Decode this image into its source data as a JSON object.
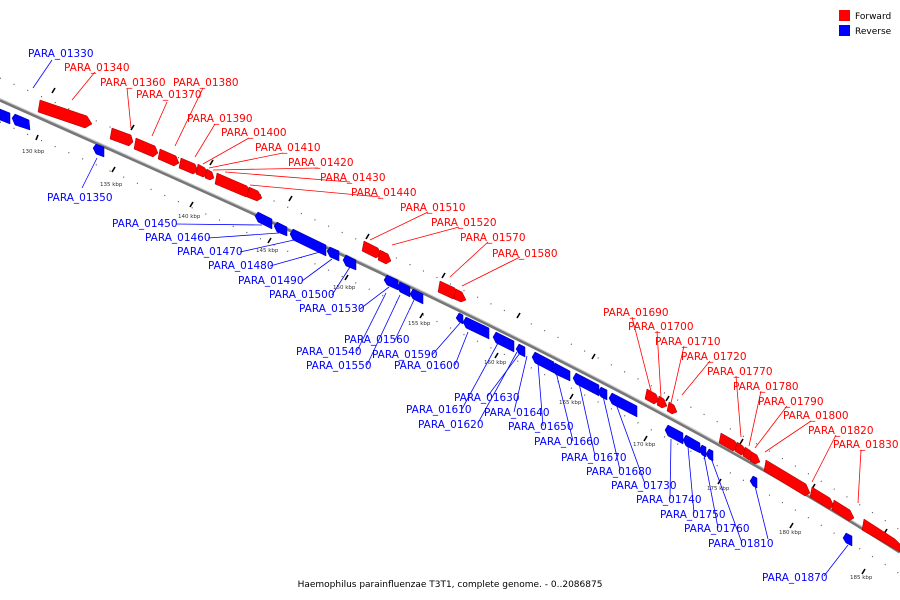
{
  "title": "Haemophilus parainfluenzae T3T1, complete genome. - 0..2086875",
  "legend": [
    {
      "label": "Forward",
      "color": "#ff0000"
    },
    {
      "label": "Reverse",
      "color": "#0000ff"
    }
  ],
  "colors": {
    "forward": "#ff0000",
    "reverse": "#0000ff",
    "backbone": "#777777"
  },
  "ticks": [
    "130 kbp",
    "135 kbp",
    "140 kbp",
    "145 kbp",
    "150 kbp",
    "155 kbp",
    "160 kbp",
    "165 kbp",
    "170 kbp",
    "175 kbp",
    "180 kbp",
    "185 kbp"
  ],
  "genes": [
    {
      "id": "PARA_01330",
      "strand": "reverse"
    },
    {
      "id": "PARA_01340",
      "strand": "forward"
    },
    {
      "id": "PARA_01350",
      "strand": "reverse"
    },
    {
      "id": "PARA_01360",
      "strand": "forward"
    },
    {
      "id": "PARA_01370",
      "strand": "forward"
    },
    {
      "id": "PARA_01380",
      "strand": "forward"
    },
    {
      "id": "PARA_01390",
      "strand": "forward"
    },
    {
      "id": "PARA_01400",
      "strand": "forward"
    },
    {
      "id": "PARA_01410",
      "strand": "forward"
    },
    {
      "id": "PARA_01420",
      "strand": "forward"
    },
    {
      "id": "PARA_01430",
      "strand": "forward"
    },
    {
      "id": "PARA_01440",
      "strand": "forward"
    },
    {
      "id": "PARA_01450",
      "strand": "reverse"
    },
    {
      "id": "PARA_01460",
      "strand": "reverse"
    },
    {
      "id": "PARA_01470",
      "strand": "reverse"
    },
    {
      "id": "PARA_01480",
      "strand": "reverse"
    },
    {
      "id": "PARA_01490",
      "strand": "reverse"
    },
    {
      "id": "PARA_01500",
      "strand": "reverse"
    },
    {
      "id": "PARA_01510",
      "strand": "forward"
    },
    {
      "id": "PARA_01520",
      "strand": "forward"
    },
    {
      "id": "PARA_01530",
      "strand": "reverse"
    },
    {
      "id": "PARA_01540",
      "strand": "reverse"
    },
    {
      "id": "PARA_01550",
      "strand": "reverse"
    },
    {
      "id": "PARA_01560",
      "strand": "reverse"
    },
    {
      "id": "PARA_01570",
      "strand": "forward"
    },
    {
      "id": "PARA_01580",
      "strand": "forward"
    },
    {
      "id": "PARA_01590",
      "strand": "reverse"
    },
    {
      "id": "PARA_01600",
      "strand": "reverse"
    },
    {
      "id": "PARA_01610",
      "strand": "reverse"
    },
    {
      "id": "PARA_01620",
      "strand": "reverse"
    },
    {
      "id": "PARA_01630",
      "strand": "reverse"
    },
    {
      "id": "PARA_01640",
      "strand": "reverse"
    },
    {
      "id": "PARA_01650",
      "strand": "reverse"
    },
    {
      "id": "PARA_01660",
      "strand": "reverse"
    },
    {
      "id": "PARA_01670",
      "strand": "reverse"
    },
    {
      "id": "PARA_01680",
      "strand": "reverse"
    },
    {
      "id": "PARA_01690",
      "strand": "forward"
    },
    {
      "id": "PARA_01700",
      "strand": "forward"
    },
    {
      "id": "PARA_01710",
      "strand": "forward"
    },
    {
      "id": "PARA_01720",
      "strand": "forward"
    },
    {
      "id": "PARA_01730",
      "strand": "reverse"
    },
    {
      "id": "PARA_01740",
      "strand": "reverse"
    },
    {
      "id": "PARA_01750",
      "strand": "reverse"
    },
    {
      "id": "PARA_01760",
      "strand": "reverse"
    },
    {
      "id": "PARA_01770",
      "strand": "forward"
    },
    {
      "id": "PARA_01780",
      "strand": "forward"
    },
    {
      "id": "PARA_01790",
      "strand": "forward"
    },
    {
      "id": "PARA_01800",
      "strand": "forward"
    },
    {
      "id": "PARA_01810",
      "strand": "reverse"
    },
    {
      "id": "PARA_01820",
      "strand": "forward"
    },
    {
      "id": "PARA_01830",
      "strand": "forward"
    },
    {
      "id": "PARA_01870",
      "strand": "reverse"
    }
  ]
}
